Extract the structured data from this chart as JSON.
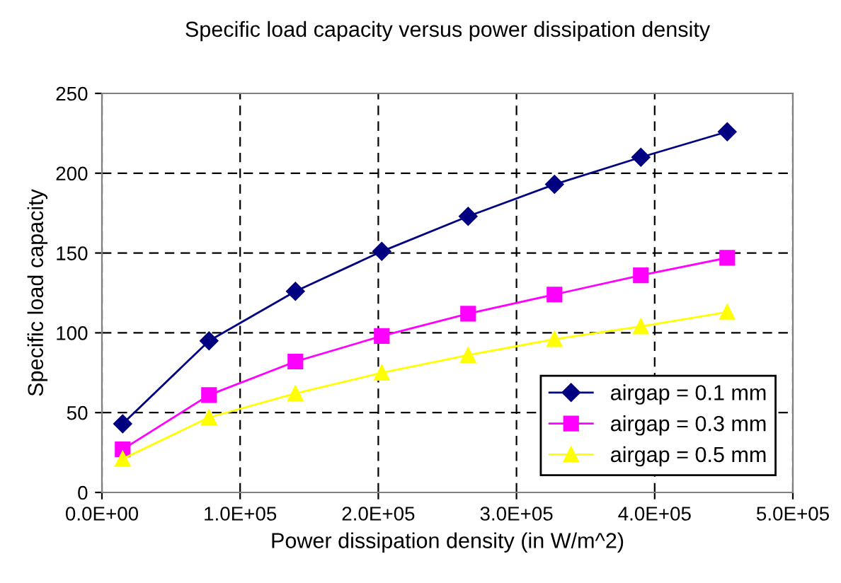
{
  "chart_data": {
    "type": "line",
    "title": "Specific load capacity versus power dissipation density",
    "xlabel": "Power dissipation density (in W/m^2)",
    "ylabel": "Specific load capacity",
    "x": [
      15000,
      77500,
      140000,
      202500,
      265000,
      327500,
      390000,
      452500
    ],
    "series": [
      {
        "name": "airgap = 0.1 mm",
        "color": "#000080",
        "marker": "diamond",
        "values": [
          43,
          95,
          126,
          151,
          173,
          193,
          210,
          226
        ]
      },
      {
        "name": "airgap = 0.3 mm",
        "color": "#ff00ff",
        "marker": "square",
        "values": [
          27,
          61,
          82,
          98,
          112,
          124,
          136,
          147
        ]
      },
      {
        "name": "airgap = 0.5 mm",
        "color": "#ffff00",
        "marker": "triangle",
        "values": [
          21,
          47,
          62,
          75,
          86,
          96,
          104,
          113
        ]
      }
    ],
    "xlim": [
      0,
      500000
    ],
    "xticks": [
      {
        "value": 0,
        "label": "0.0E+00"
      },
      {
        "value": 100000,
        "label": "1.0E+05"
      },
      {
        "value": 200000,
        "label": "2.0E+05"
      },
      {
        "value": 300000,
        "label": "3.0E+05"
      },
      {
        "value": 400000,
        "label": "4.0E+05"
      },
      {
        "value": 500000,
        "label": "5.0E+05"
      }
    ],
    "ylim": [
      0,
      250
    ],
    "yticks": [
      0,
      50,
      100,
      150,
      200,
      250
    ],
    "grid": true,
    "legend": "bottom right",
    "line_style": "solid"
  }
}
